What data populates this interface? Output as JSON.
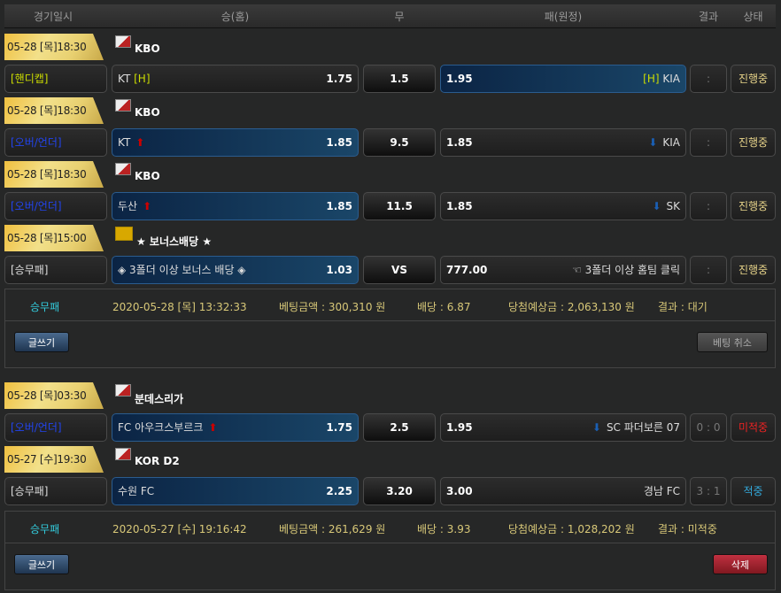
{
  "header": {
    "date": "경기일시",
    "home": "승(홈)",
    "draw": "무",
    "away": "패(원정)",
    "result": "결과",
    "status": "상태"
  },
  "games": [
    {
      "date": "05-28 [목]18:30",
      "league": "KBO",
      "type": "[핸디캡]",
      "type_color": "#ccdd00",
      "home": "KT",
      "home_tag": "[H]",
      "home_odd": "1.75",
      "draw": "1.5",
      "away_odd": "1.95",
      "away": "KIA",
      "away_tag": "[H]",
      "result": ":",
      "status": "진행중",
      "highlight": "away"
    },
    {
      "date": "05-28 [목]18:30",
      "league": "KBO",
      "type": "[오버/언더]",
      "type_color": "#2244ee",
      "home": "KT",
      "home_odd": "1.85",
      "draw": "9.5",
      "away_odd": "1.85",
      "away": "KIA",
      "result": ":",
      "status": "진행중",
      "highlight": "home",
      "arrows": true
    },
    {
      "date": "05-28 [목]18:30",
      "league": "KBO",
      "type": "[오버/언더]",
      "type_color": "#2244ee",
      "home": "두산",
      "home_odd": "1.85",
      "draw": "11.5",
      "away_odd": "1.85",
      "away": "SK",
      "result": ":",
      "status": "진행중",
      "highlight": "home",
      "arrows": true
    },
    {
      "date": "05-28 [목]15:00",
      "league": "★ 보너스배당 ★",
      "league_icon": "BONUS",
      "type": "[승무패]",
      "type_color": "#dddddd",
      "home": "◈ 3폴더 이상 보너스 배당 ◈",
      "home_odd": "1.03",
      "draw": "VS",
      "away_odd": "777.00",
      "away": "☜ 3폴더 이상 홈팀 클릭",
      "result": ":",
      "status": "진행중",
      "highlight": "home"
    },
    {
      "date": "05-28 [목]03:30",
      "league": "분데스리가",
      "type": "[오버/언더]",
      "type_color": "#2244ee",
      "home": "FC 아우크스부르크",
      "home_odd": "1.75",
      "draw": "2.5",
      "away_odd": "1.95",
      "away": "SC 파더보른 07",
      "result": "0 : 0",
      "status": "미적중",
      "status_color": "#ee2222",
      "highlight": "home",
      "arrows": true
    },
    {
      "date": "05-27 [수]19:30",
      "league": "KOR D2",
      "type": "[승무패]",
      "type_color": "#dddddd",
      "home": "수원 FC",
      "home_odd": "2.25",
      "draw": "3.20",
      "away_odd": "3.00",
      "away": "경남 FC",
      "result": "3 : 1",
      "status": "적중",
      "status_color": "#33aadd",
      "highlight": "home"
    }
  ],
  "slips": [
    {
      "type": "승무패",
      "datetime": "2020-05-28 [목] 13:32:33",
      "amount": "베팅금액 : 300,310 원",
      "odds": "배당 : 6.87",
      "expected": "당첨예상금 : 2,063,130 원",
      "result": "결과 : 대기",
      "write": "글쓰기",
      "action": "베팅 취소"
    },
    {
      "type": "승무패",
      "datetime": "2020-05-27 [수] 19:16:42",
      "amount": "베팅금액 : 261,629 원",
      "odds": "배당 : 3.93",
      "expected": "당첨예상금 : 1,028,202 원",
      "result": "결과 : 미적중",
      "write": "글쓰기",
      "action": "삭제"
    }
  ]
}
